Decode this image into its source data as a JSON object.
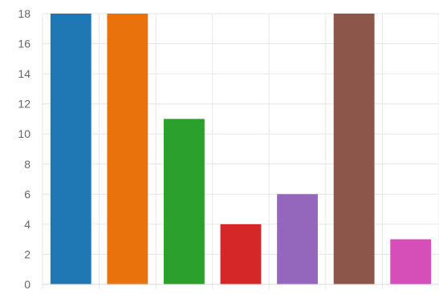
{
  "chart_data": {
    "type": "bar",
    "categories": [
      "",
      "",
      "",
      "",
      "",
      "",
      ""
    ],
    "values": [
      18,
      18,
      11,
      4,
      6,
      18,
      3
    ],
    "colors": [
      "#1f77b4",
      "#e8730c",
      "#2ca02c",
      "#d62728",
      "#9467bd",
      "#8c564b",
      "#d64eb8"
    ],
    "ylim": [
      0,
      18
    ],
    "yticks": [
      "0",
      "2",
      "4",
      "6",
      "8",
      "10",
      "12",
      "14",
      "16",
      "18"
    ],
    "grid": true,
    "legend": "none"
  }
}
